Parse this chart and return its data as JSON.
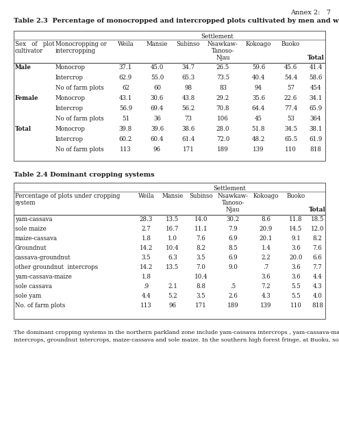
{
  "annex_text": "Annex 2:   7",
  "table1_title": "Table 2.3  Percentage of monocropped and intercropped plots cultivated by men and women",
  "table2_title": "Table 2.4 Dominant cropping systems",
  "settlement": "Settlement",
  "t1_col0a": "Sex   of   plot",
  "t1_col0b": "cultivator",
  "t1_col1a": "Monocropping or",
  "t1_col1b": "intercropping",
  "col_weila": "Weila",
  "col_mansie": "Mansie",
  "col_subinso": "Subinso",
  "col_nsawkaw": "Nsawkaw-",
  "col_tanoso": "Tanoso-",
  "col_njau": "Njau",
  "col_kokoago": "Kokoago",
  "col_buoko": "Buoko",
  "col_total": "Total",
  "table1_rows": [
    [
      "Male",
      "Monocrop",
      "37.1",
      "45.0",
      "34.7",
      "26.5",
      "59.6",
      "45.6",
      "41.4"
    ],
    [
      "",
      "Intercrop",
      "62.9",
      "55.0",
      "65.3",
      "73.5",
      "40.4",
      "54.4",
      "58.6"
    ],
    [
      "",
      "No of farm plots",
      "62",
      "60",
      "98",
      "83",
      "94",
      "57",
      "454"
    ],
    [
      "Female",
      "Monocrop",
      "43.1",
      "30.6",
      "43.8",
      "29.2",
      "35.6",
      "22.6",
      "34.1"
    ],
    [
      "",
      "Intercrop",
      "56.9",
      "69.4",
      "56.2",
      "70.8",
      "64.4",
      "77.4",
      "65.9"
    ],
    [
      "",
      "No of farm plots",
      "51",
      "36",
      "73",
      "106",
      "45",
      "53",
      "364"
    ],
    [
      "Total",
      "Monocrop",
      "39.8",
      "39.6",
      "38.6",
      "28.0",
      "51.8",
      "34.5",
      "38.1"
    ],
    [
      "",
      "Intercrop",
      "60.2",
      "60.4",
      "61.4",
      "72.0",
      "48.2",
      "65.5",
      "61.9"
    ],
    [
      "",
      "No of farm plots",
      "113",
      "96",
      "171",
      "189",
      "139",
      "110",
      "818"
    ]
  ],
  "t2_col0a": "Percentage of plots under cropping",
  "t2_col0b": "system",
  "table2_rows": [
    [
      "yam-cassava",
      "28.3",
      "13.5",
      "14.0",
      "30.2",
      "8.6",
      "11.8",
      "18.5"
    ],
    [
      "sole maize",
      "2.7",
      "16.7",
      "11.1",
      "7.9",
      "20.9",
      "14.5",
      "12.0"
    ],
    [
      "maize-cassava",
      "1.8",
      "1.0",
      "7.6",
      "6.9",
      "20.1",
      "9.1",
      "8.2"
    ],
    [
      "Groundnut",
      "14.2",
      "10.4",
      "8.2",
      "8.5",
      "1.4",
      "3.6",
      "7.6"
    ],
    [
      "cassava-groundnut",
      "3.5",
      "6.3",
      "3.5",
      "6.9",
      "2.2",
      "20.0",
      "6.6"
    ],
    [
      "other groundnut  intercrops",
      "14.2",
      "13.5",
      "7.0",
      "9.0",
      ".7",
      "3.6",
      "7.7"
    ],
    [
      "yam-cassava-maize",
      "1.8",
      "",
      "10.4",
      "",
      "3.6",
      "3.6",
      "4.4"
    ],
    [
      "sole cassava",
      ".9",
      "2.1",
      "8.8",
      ".5",
      "7.2",
      "5.5",
      "4.3"
    ],
    [
      "sole yam",
      "4.4",
      "5.2",
      "3.5",
      "2.6",
      "4.3",
      "5.5",
      "4.0"
    ],
    [
      "No. of farm plots",
      "113",
      "96",
      "171",
      "189",
      "139",
      "110",
      "818"
    ]
  ],
  "footer_line1": "The dominant cropping systems in the northern parkland zone include yam-cassava intercrops , yam-cassava-maize",
  "footer_line2": "intercrops, groundnut intercrops, maize-cassava and sole maize. In the southern high forest fringe, at Buoku, sole maize or",
  "bg_color": "#ffffff",
  "text_color": "#1a1a1a",
  "border_color": "#555555"
}
